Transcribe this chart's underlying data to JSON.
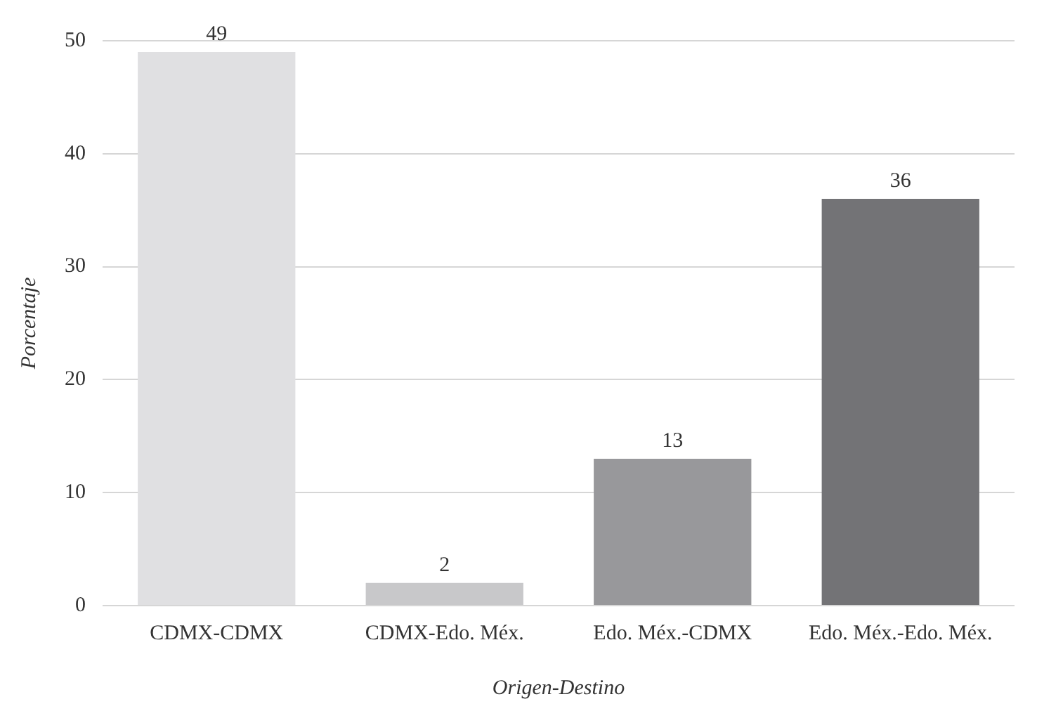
{
  "chart_data": {
    "type": "bar",
    "xlabel": "Origen-Destino",
    "ylabel": "Porcentaje",
    "categories": [
      "CDMX-CDMX",
      "CDMX-Edo. Méx.",
      "Edo. Méx.-CDMX",
      "Edo. Méx.-Edo. Méx."
    ],
    "values": [
      49,
      2,
      13,
      36
    ],
    "colors": [
      "#e0e0e2",
      "#c8c8ca",
      "#98989b",
      "#737376"
    ],
    "ylim": [
      0,
      50
    ],
    "yticks": [
      0,
      10,
      20,
      30,
      40,
      50
    ],
    "grid": "y",
    "data_labels": true,
    "legend": false
  }
}
